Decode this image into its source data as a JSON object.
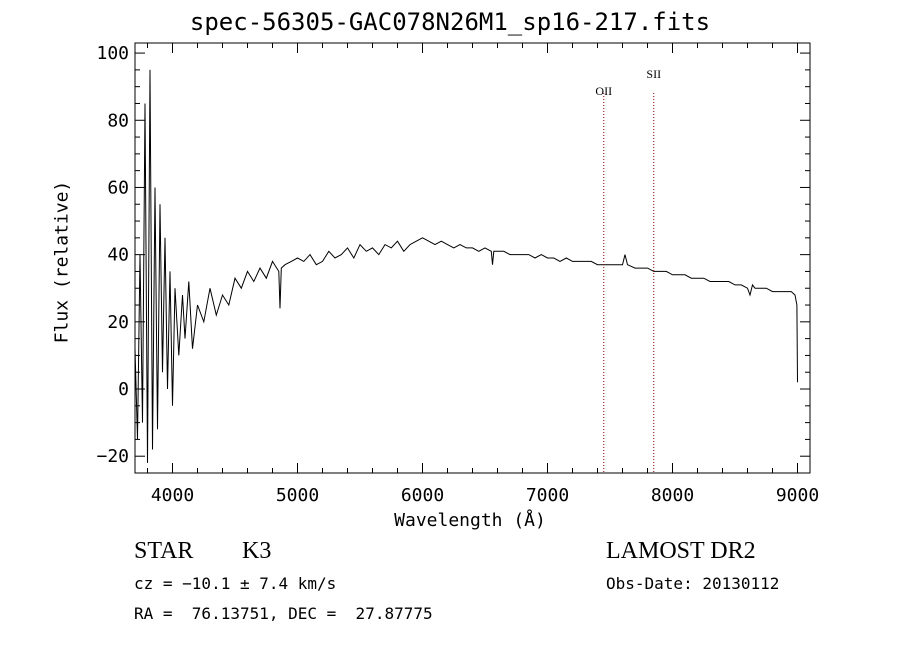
{
  "chart_data": {
    "type": "line",
    "title": "spec-56305-GAC078N26M1_sp16-217.fits",
    "xlabel": "Wavelength (Å)",
    "ylabel": "Flux (relative)",
    "xlim": [
      3700,
      9100
    ],
    "ylim": [
      -25,
      103
    ],
    "x_ticks": [
      4000,
      5000,
      6000,
      7000,
      8000,
      9000
    ],
    "y_ticks": [
      -20,
      0,
      20,
      40,
      60,
      80,
      100
    ],
    "line_color": "#000000",
    "marker_color": "#8b0000",
    "series": [
      {
        "x": [
          3700,
          3720,
          3740,
          3760,
          3780,
          3800,
          3820,
          3840,
          3860,
          3880,
          3900,
          3920,
          3940,
          3960,
          3980,
          4000,
          4020,
          4050,
          4080,
          4100,
          4130,
          4160,
          4200,
          4250,
          4300,
          4350,
          4400,
          4450,
          4500,
          4550,
          4600,
          4650,
          4700,
          4750,
          4800,
          4850,
          4860,
          4870,
          4900,
          4950,
          5000,
          5050,
          5100,
          5150,
          5200,
          5250,
          5300,
          5350,
          5400,
          5450,
          5500,
          5550,
          5600,
          5650,
          5700,
          5750,
          5800,
          5850,
          5900,
          5950,
          6000,
          6050,
          6100,
          6150,
          6200,
          6250,
          6300,
          6350,
          6400,
          6450,
          6500,
          6550,
          6560,
          6570,
          6600,
          6650,
          6700,
          6750,
          6800,
          6850,
          6900,
          6950,
          7000,
          7050,
          7100,
          7150,
          7200,
          7250,
          7300,
          7350,
          7400,
          7450,
          7500,
          7550,
          7600,
          7620,
          7640,
          7700,
          7750,
          7800,
          7850,
          7900,
          7950,
          8000,
          8050,
          8100,
          8150,
          8200,
          8250,
          8300,
          8350,
          8400,
          8450,
          8500,
          8550,
          8600,
          8620,
          8640,
          8660,
          8700,
          8750,
          8800,
          8850,
          8900,
          8950,
          8980,
          8995,
          9000
        ],
        "y": [
          12,
          -15,
          40,
          -10,
          85,
          -22,
          95,
          -18,
          60,
          -12,
          55,
          5,
          45,
          0,
          35,
          -5,
          30,
          10,
          28,
          15,
          32,
          12,
          25,
          20,
          30,
          22,
          28,
          25,
          33,
          30,
          35,
          32,
          36,
          33,
          38,
          35,
          24,
          36,
          37,
          38,
          39,
          38,
          40,
          37,
          38,
          41,
          39,
          40,
          42,
          39,
          43,
          41,
          42,
          40,
          43,
          42,
          44,
          41,
          43,
          44,
          45,
          44,
          43,
          44,
          43,
          42,
          43,
          42,
          42,
          41,
          42,
          41,
          37,
          41,
          41,
          41,
          40,
          40,
          40,
          40,
          39,
          40,
          39,
          39,
          38,
          39,
          38,
          38,
          38,
          38,
          37,
          37,
          37,
          37,
          37,
          40,
          37,
          36,
          36,
          36,
          35,
          35,
          35,
          34,
          34,
          34,
          33,
          33,
          33,
          32,
          32,
          32,
          32,
          31,
          31,
          30,
          28,
          31,
          30,
          30,
          30,
          29,
          29,
          29,
          29,
          28,
          25,
          2
        ]
      }
    ],
    "line_markers": [
      {
        "label": "OII",
        "x": 7450
      },
      {
        "label": "SII",
        "x": 7850
      }
    ]
  },
  "info": {
    "object_class": "STAR",
    "subclass": "K3",
    "cz": "cz = −10.1 ± 7.4 km/s",
    "coords": "RA =  76.13751, DEC =  27.87775",
    "survey": "LAMOST DR2",
    "obs_date": "Obs-Date: 20130112"
  }
}
